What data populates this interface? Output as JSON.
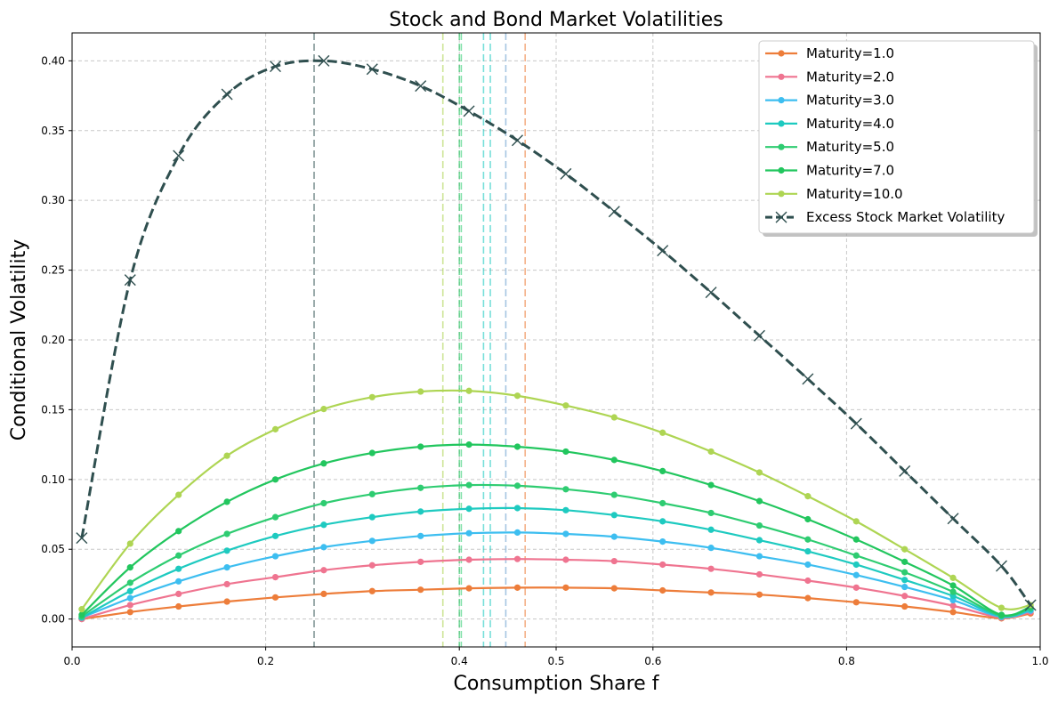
{
  "chart_data": {
    "type": "line",
    "title": "Stock and Bond Market Volatilities",
    "xlabel": "Consumption Share f",
    "ylabel": "Conditional Volatility",
    "xlim": [
      0.0,
      1.0
    ],
    "ylim": [
      -0.02,
      0.42
    ],
    "x_ticks": [
      0.0,
      0.2,
      0.4,
      0.5,
      0.6,
      0.8,
      1.0
    ],
    "x_tick_labels": [
      "0.0",
      "0.2",
      "0.4",
      "0.5",
      "0.6",
      "0.8",
      "1.0"
    ],
    "y_ticks": [
      0.0,
      0.05,
      0.1,
      0.15,
      0.2,
      0.25,
      0.3,
      0.35,
      0.4
    ],
    "y_tick_labels": [
      "0.00",
      "0.05",
      "0.10",
      "0.15",
      "0.20",
      "0.25",
      "0.30",
      "0.35",
      "0.40"
    ],
    "grid": true,
    "legend_position": "top-right",
    "x": [
      0.01,
      0.06,
      0.11,
      0.16,
      0.21,
      0.26,
      0.31,
      0.36,
      0.41,
      0.46,
      0.51,
      0.56,
      0.61,
      0.66,
      0.71,
      0.76,
      0.81,
      0.86,
      0.91,
      0.96,
      0.99
    ],
    "series": [
      {
        "name": "Maturity=1.0",
        "color": "#ED7D3A",
        "marker": "circle",
        "style": "solid",
        "values": [
          0.0,
          0.005,
          0.009,
          0.0125,
          0.0155,
          0.018,
          0.02,
          0.021,
          0.022,
          0.0225,
          0.0225,
          0.022,
          0.0205,
          0.019,
          0.0175,
          0.015,
          0.012,
          0.009,
          0.005,
          0.0005,
          0.004
        ]
      },
      {
        "name": "Maturity=2.0",
        "color": "#EF7490",
        "marker": "circle",
        "style": "solid",
        "values": [
          0.0,
          0.01,
          0.018,
          0.025,
          0.03,
          0.035,
          0.0385,
          0.041,
          0.0425,
          0.043,
          0.0425,
          0.0415,
          0.039,
          0.036,
          0.032,
          0.0275,
          0.0225,
          0.0165,
          0.0095,
          0.001,
          0.005
        ]
      },
      {
        "name": "Maturity=3.0",
        "color": "#3DBEF0",
        "marker": "circle",
        "style": "solid",
        "values": [
          0.001,
          0.015,
          0.027,
          0.037,
          0.045,
          0.0515,
          0.056,
          0.0595,
          0.0615,
          0.062,
          0.061,
          0.059,
          0.0555,
          0.051,
          0.045,
          0.039,
          0.0315,
          0.023,
          0.0135,
          0.0015,
          0.006
        ]
      },
      {
        "name": "Maturity=4.0",
        "color": "#1ECAC0",
        "marker": "circle",
        "style": "solid",
        "values": [
          0.001,
          0.02,
          0.036,
          0.049,
          0.0595,
          0.0675,
          0.073,
          0.077,
          0.079,
          0.0795,
          0.078,
          0.0745,
          0.07,
          0.064,
          0.0565,
          0.0485,
          0.039,
          0.028,
          0.0165,
          0.002,
          0.007
        ]
      },
      {
        "name": "Maturity=5.0",
        "color": "#2ECC71",
        "marker": "circle",
        "style": "solid",
        "values": [
          0.002,
          0.026,
          0.0455,
          0.061,
          0.073,
          0.083,
          0.0895,
          0.094,
          0.096,
          0.0955,
          0.093,
          0.089,
          0.083,
          0.076,
          0.067,
          0.057,
          0.0455,
          0.0335,
          0.0195,
          0.0025,
          0.008
        ]
      },
      {
        "name": "Maturity=7.0",
        "color": "#22C65E",
        "marker": "circle",
        "style": "solid",
        "values": [
          0.003,
          0.037,
          0.063,
          0.084,
          0.1,
          0.1115,
          0.119,
          0.1235,
          0.125,
          0.1235,
          0.12,
          0.114,
          0.106,
          0.096,
          0.0845,
          0.0715,
          0.057,
          0.041,
          0.024,
          0.003,
          0.009
        ]
      },
      {
        "name": "Maturity=10.0",
        "color": "#AED553",
        "marker": "circle",
        "style": "solid",
        "values": [
          0.007,
          0.054,
          0.089,
          0.117,
          0.136,
          0.1505,
          0.159,
          0.163,
          0.1635,
          0.16,
          0.153,
          0.1445,
          0.1335,
          0.12,
          0.105,
          0.088,
          0.07,
          0.05,
          0.0295,
          0.008,
          0.01
        ]
      },
      {
        "name": "Excess Stock Market Volatility",
        "color": "#2F4F4F",
        "marker": "x",
        "style": "dashed",
        "values": [
          0.058,
          0.243,
          0.332,
          0.376,
          0.396,
          0.4,
          0.394,
          0.382,
          0.364,
          0.343,
          0.319,
          0.292,
          0.264,
          0.234,
          0.203,
          0.172,
          0.14,
          0.106,
          0.072,
          0.038,
          0.01
        ]
      }
    ],
    "vertical_lines": [
      {
        "x": 0.25,
        "color": "#2F4F4F"
      },
      {
        "x": 0.383,
        "color": "#AED553"
      },
      {
        "x": 0.4,
        "color": "#22C65E"
      },
      {
        "x": 0.402,
        "color": "#2ECC71"
      },
      {
        "x": 0.425,
        "color": "#1ECAC0"
      },
      {
        "x": 0.432,
        "color": "#1ECAC0"
      },
      {
        "x": 0.448,
        "color": "#6A9FD0"
      },
      {
        "x": 0.468,
        "color": "#ED7D3A"
      }
    ]
  }
}
